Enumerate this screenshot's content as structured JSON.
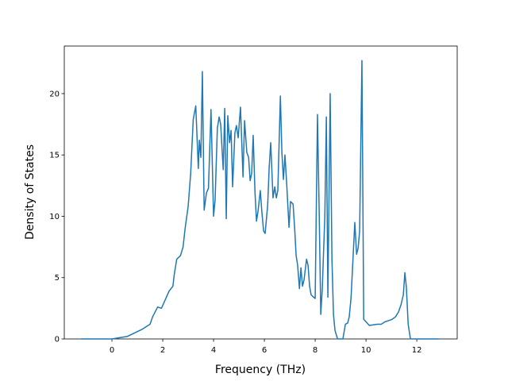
{
  "chart_data": {
    "type": "line",
    "x_label": "Frequency (THz)",
    "y_label": "Density of States",
    "xlim": [
      -1.875,
      13.59
    ],
    "ylim": [
      0,
      23.88
    ],
    "xticks": [
      0,
      2,
      4,
      6,
      8,
      10,
      12
    ],
    "yticks": [
      0,
      5,
      10,
      15,
      20
    ],
    "series": [
      {
        "color": "#1f77b4",
        "x": [
          -1.22,
          0,
          0.6,
          1.2,
          1.5,
          1.6,
          1.8,
          1.95,
          2.1,
          2.25,
          2.4,
          2.45,
          2.55,
          2.7,
          2.8,
          2.88,
          3.0,
          3.1,
          3.2,
          3.3,
          3.4,
          3.44,
          3.5,
          3.56,
          3.63,
          3.72,
          3.8,
          3.9,
          4.0,
          4.06,
          4.15,
          4.22,
          4.28,
          4.38,
          4.44,
          4.5,
          4.56,
          4.63,
          4.69,
          4.75,
          4.84,
          4.9,
          4.97,
          5.06,
          5.16,
          5.22,
          5.31,
          5.38,
          5.44,
          5.5,
          5.56,
          5.63,
          5.69,
          5.75,
          5.84,
          5.9,
          5.97,
          6.03,
          6.13,
          6.19,
          6.25,
          6.34,
          6.41,
          6.47,
          6.53,
          6.63,
          6.69,
          6.75,
          6.81,
          6.88,
          6.97,
          7.03,
          7.13,
          7.19,
          7.25,
          7.31,
          7.38,
          7.44,
          7.5,
          7.56,
          7.66,
          7.72,
          7.78,
          7.84,
          7.94,
          8.0,
          8.09,
          8.16,
          8.22,
          8.28,
          8.38,
          8.44,
          8.5,
          8.59,
          8.66,
          8.72,
          8.78,
          8.88,
          9.09,
          9.19,
          9.28,
          9.34,
          9.41,
          9.5,
          9.56,
          9.63,
          9.69,
          9.75,
          9.84,
          9.91,
          10.0,
          10.13,
          10.44,
          10.6,
          10.75,
          10.9,
          11.03,
          11.16,
          11.28,
          11.38,
          11.47,
          11.53,
          11.59,
          11.66,
          11.75,
          12.88
        ],
        "values": [
          0,
          0,
          0.2,
          0.8,
          1.2,
          1.8,
          2.6,
          2.5,
          3.2,
          3.9,
          4.3,
          5.2,
          6.5,
          6.8,
          7.5,
          9.0,
          10.8,
          13.5,
          17.9,
          19.0,
          13.9,
          16.2,
          14.8,
          21.8,
          10.5,
          11.9,
          12.3,
          18.7,
          10.0,
          11.3,
          17.2,
          18.1,
          17.5,
          13.8,
          18.8,
          9.8,
          18.2,
          16.0,
          17.0,
          12.4,
          16.8,
          17.4,
          16.4,
          18.9,
          13.2,
          17.8,
          15.2,
          14.8,
          12.9,
          13.5,
          16.6,
          12.0,
          9.6,
          10.4,
          12.1,
          10.4,
          8.8,
          8.6,
          10.9,
          14.0,
          16.0,
          11.5,
          12.4,
          11.5,
          12.1,
          19.8,
          15.2,
          13.0,
          15.0,
          12.6,
          9.1,
          11.2,
          11.0,
          9.1,
          6.8,
          6.0,
          4.1,
          5.8,
          4.3,
          4.8,
          6.5,
          6.0,
          4.3,
          3.6,
          3.4,
          3.3,
          18.3,
          10.1,
          2.0,
          4.1,
          10.0,
          18.1,
          3.4,
          20.0,
          6.5,
          2.0,
          0.7,
          0,
          0,
          1.2,
          1.3,
          1.8,
          3.3,
          7.0,
          9.5,
          6.9,
          7.4,
          8.8,
          22.7,
          1.6,
          1.4,
          1.1,
          1.2,
          1.2,
          1.4,
          1.5,
          1.6,
          1.8,
          2.2,
          2.8,
          3.6,
          5.4,
          4.2,
          1.2,
          0,
          0
        ]
      }
    ]
  }
}
